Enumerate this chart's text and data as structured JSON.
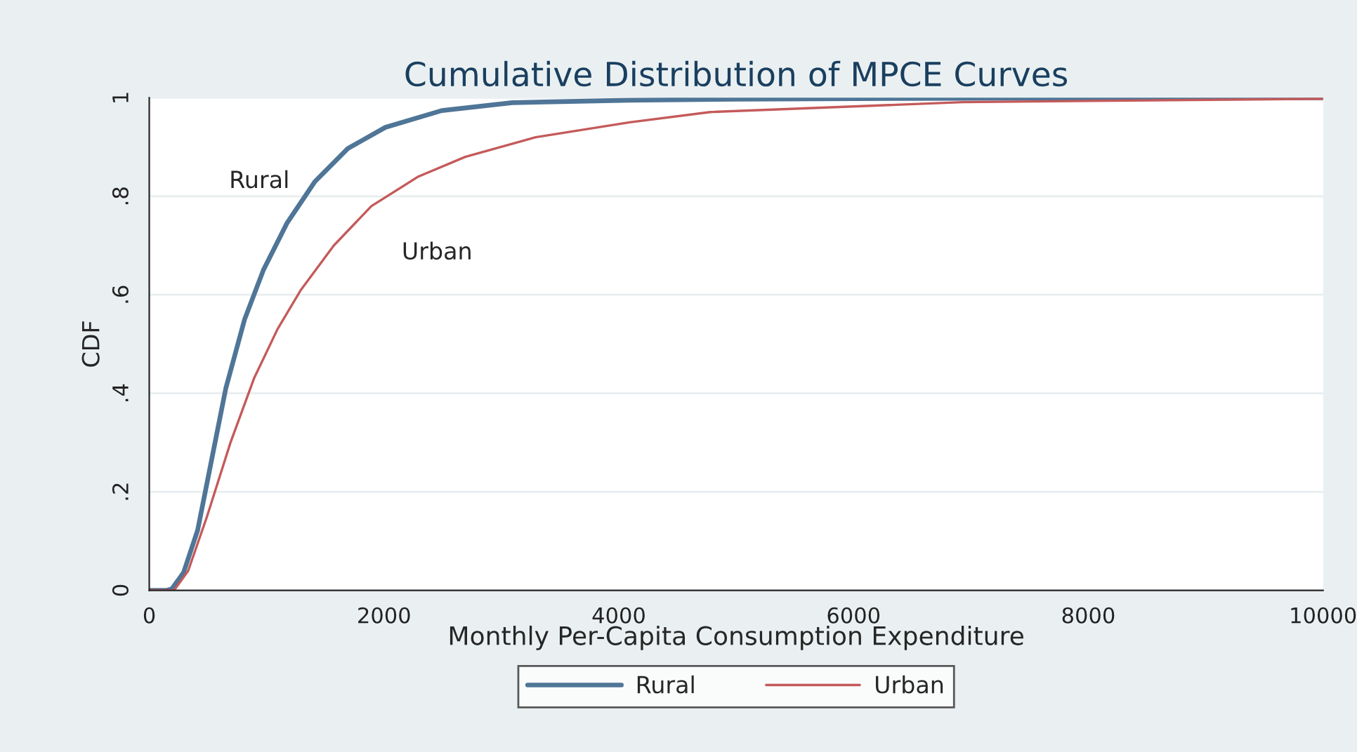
{
  "chart_data": {
    "type": "line",
    "title": "Cumulative Distribution of MPCE Curves",
    "xlabel": "Monthly Per-Capita Consumption Expenditure",
    "ylabel": "CDF",
    "xlim": [
      0,
      10000
    ],
    "xticks": [
      0,
      2000,
      4000,
      6000,
      8000,
      10000
    ],
    "ylim": [
      0,
      1
    ],
    "yticks": [
      0,
      {
        "value": 0.2,
        "label": ".2"
      },
      {
        "value": 0.4,
        "label": ".4"
      },
      {
        "value": 0.6,
        "label": ".6"
      },
      {
        "value": 0.8,
        "label": ".8"
      },
      1
    ],
    "grid": "y",
    "legend": "bottom",
    "marker": "none",
    "line_style": "solid",
    "annotations": [
      "Rural",
      "Urban"
    ],
    "series": [
      {
        "name": "Rural",
        "color": "#4f7597",
        "x": [
          0,
          150,
          192,
          292,
          412,
          532,
          652,
          812,
          972,
          1172,
          1412,
          1692,
          2012,
          2492,
          3092,
          4092,
          5000,
          7000,
          10000
        ],
        "values": [
          0,
          0,
          0.003,
          0.036,
          0.122,
          0.266,
          0.41,
          0.55,
          0.65,
          0.745,
          0.83,
          0.897,
          0.94,
          0.974,
          0.99,
          0.995,
          0.997,
          0.999,
          1.0
        ]
      },
      {
        "name": "Urban",
        "color": "#c45a5a",
        "x": [
          0,
          150,
          212,
          332,
          492,
          692,
          892,
          1092,
          1292,
          1572,
          1892,
          2292,
          2692,
          3292,
          4092,
          4778,
          6927,
          10000
        ],
        "values": [
          0,
          0,
          0,
          0.04,
          0.15,
          0.3,
          0.43,
          0.53,
          0.61,
          0.7,
          0.78,
          0.84,
          0.88,
          0.92,
          0.95,
          0.971,
          0.991,
          0.998
        ]
      }
    ]
  }
}
